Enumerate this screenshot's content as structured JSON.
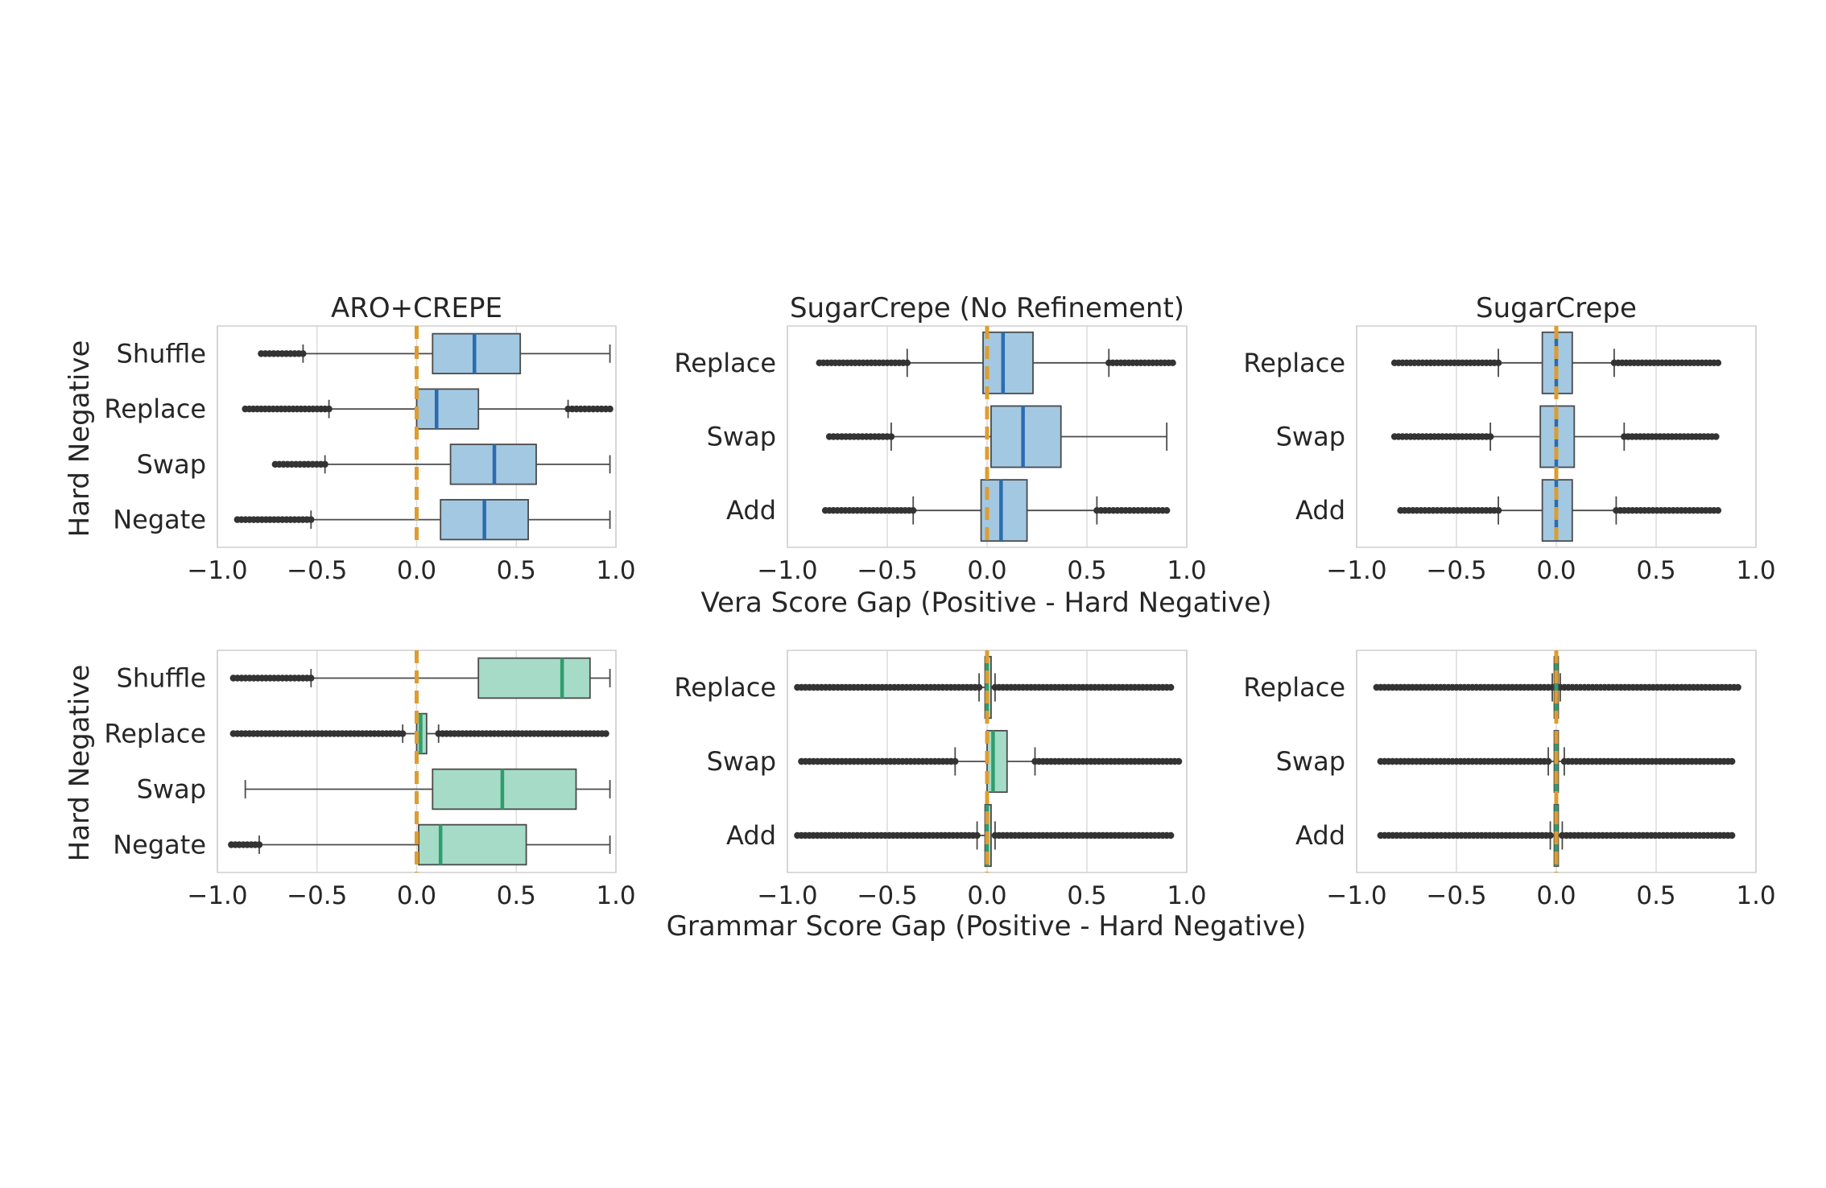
{
  "figure": {
    "row_ylabel": "Hard Negative",
    "xlabels": [
      "Vera Score Gap (Positive - Hard Negative)",
      "Grammar Score Gap (Positive - Hard Negative)"
    ],
    "colors": {
      "vera_box": "#a3c8e2",
      "vera_median": "#2b6cb0",
      "grammar_box": "#a6dbc8",
      "grammar_median": "#2e9e6c",
      "reference_line": "#dd9d2f",
      "grid": "#dcdcdc",
      "frame": "#cfcfcf"
    }
  },
  "chart_data": [
    {
      "type": "box",
      "title": "ARO+CREPE",
      "metric": "Vera Score Gap",
      "xlim": [
        -1.0,
        1.0
      ],
      "xticks": [
        "−1.0",
        "−0.5",
        "0.0",
        "0.5",
        "1.0"
      ],
      "ylabel": "Hard Negative",
      "reference_x": 0.0,
      "categories": [
        "Shuffle",
        "Replace",
        "Swap",
        "Negate"
      ],
      "boxes": [
        {
          "whislo": -0.57,
          "q1": 0.08,
          "med": 0.29,
          "q3": 0.52,
          "whishi": 0.97,
          "outliers_range": [
            -0.78,
            -0.57
          ]
        },
        {
          "whislo": -0.44,
          "q1": 0.0,
          "med": 0.1,
          "q3": 0.31,
          "whishi": 0.76,
          "outliers_range": [
            -0.86,
            -0.44
          ],
          "outliers_range_high": [
            0.76,
            0.97
          ]
        },
        {
          "whislo": -0.46,
          "q1": 0.17,
          "med": 0.39,
          "q3": 0.6,
          "whishi": 0.97,
          "outliers_range": [
            -0.71,
            -0.46
          ]
        },
        {
          "whislo": -0.53,
          "q1": 0.12,
          "med": 0.34,
          "q3": 0.56,
          "whishi": 0.97,
          "outliers_range": [
            -0.9,
            -0.53
          ]
        }
      ]
    },
    {
      "type": "box",
      "title": "SugarCrepe (No Refinement)",
      "metric": "Vera Score Gap",
      "xlim": [
        -1.0,
        1.0
      ],
      "xticks": [
        "−1.0",
        "−0.5",
        "0.0",
        "0.5",
        "1.0"
      ],
      "reference_x": 0.0,
      "categories": [
        "Replace",
        "Swap",
        "Add"
      ],
      "boxes": [
        {
          "whislo": -0.4,
          "q1": -0.02,
          "med": 0.08,
          "q3": 0.23,
          "whishi": 0.61,
          "outliers_range": [
            -0.84,
            -0.4
          ],
          "outliers_range_high": [
            0.61,
            0.93
          ]
        },
        {
          "whislo": -0.48,
          "q1": 0.02,
          "med": 0.18,
          "q3": 0.37,
          "whishi": 0.9,
          "outliers_range": [
            -0.79,
            -0.48
          ]
        },
        {
          "whislo": -0.37,
          "q1": -0.03,
          "med": 0.07,
          "q3": 0.2,
          "whishi": 0.55,
          "outliers_range": [
            -0.81,
            -0.37
          ],
          "outliers_range_high": [
            0.55,
            0.9
          ]
        }
      ]
    },
    {
      "type": "box",
      "title": "SugarCrepe",
      "metric": "Vera Score Gap",
      "xlim": [
        -1.0,
        1.0
      ],
      "xticks": [
        "−1.0",
        "−0.5",
        "0.0",
        "0.5",
        "1.0"
      ],
      "reference_x": 0.0,
      "categories": [
        "Replace",
        "Swap",
        "Add"
      ],
      "boxes": [
        {
          "whislo": -0.29,
          "q1": -0.07,
          "med": 0.0,
          "q3": 0.08,
          "whishi": 0.29,
          "outliers_range": [
            -0.81,
            -0.29
          ],
          "outliers_range_high": [
            0.29,
            0.81
          ]
        },
        {
          "whislo": -0.33,
          "q1": -0.08,
          "med": 0.0,
          "q3": 0.09,
          "whishi": 0.34,
          "outliers_range": [
            -0.81,
            -0.33
          ],
          "outliers_range_high": [
            0.34,
            0.8
          ]
        },
        {
          "whislo": -0.29,
          "q1": -0.07,
          "med": 0.0,
          "q3": 0.08,
          "whishi": 0.3,
          "outliers_range": [
            -0.78,
            -0.29
          ],
          "outliers_range_high": [
            0.3,
            0.81
          ]
        }
      ]
    },
    {
      "type": "box",
      "title": "",
      "metric": "Grammar Score Gap",
      "xlim": [
        -1.0,
        1.0
      ],
      "xticks": [
        "−1.0",
        "−0.5",
        "0.0",
        "0.5",
        "1.0"
      ],
      "ylabel": "Hard Negative",
      "reference_x": 0.0,
      "categories": [
        "Shuffle",
        "Replace",
        "Swap",
        "Negate"
      ],
      "boxes": [
        {
          "whislo": -0.53,
          "q1": 0.31,
          "med": 0.73,
          "q3": 0.87,
          "whishi": 0.97,
          "outliers_range": [
            -0.92,
            -0.53
          ]
        },
        {
          "whislo": -0.07,
          "q1": 0.0,
          "med": 0.02,
          "q3": 0.05,
          "whishi": 0.11,
          "outliers_range": [
            -0.92,
            -0.07
          ],
          "outliers_range_high": [
            0.11,
            0.95
          ]
        },
        {
          "whislo": -0.86,
          "q1": 0.08,
          "med": 0.43,
          "q3": 0.8,
          "whishi": 0.97
        },
        {
          "whislo": -0.79,
          "q1": 0.01,
          "med": 0.12,
          "q3": 0.55,
          "whishi": 0.97,
          "outliers_range": [
            -0.93,
            -0.79
          ]
        }
      ]
    },
    {
      "type": "box",
      "title": "",
      "metric": "Grammar Score Gap",
      "xlim": [
        -1.0,
        1.0
      ],
      "xticks": [
        "−1.0",
        "−0.5",
        "0.0",
        "0.5",
        "1.0"
      ],
      "reference_x": 0.0,
      "categories": [
        "Replace",
        "Swap",
        "Add"
      ],
      "boxes": [
        {
          "whislo": -0.04,
          "q1": -0.01,
          "med": 0.0,
          "q3": 0.02,
          "whishi": 0.04,
          "outliers_range": [
            -0.95,
            -0.04
          ],
          "outliers_range_high": [
            0.04,
            0.92
          ]
        },
        {
          "whislo": -0.16,
          "q1": 0.0,
          "med": 0.03,
          "q3": 0.1,
          "whishi": 0.24,
          "outliers_range": [
            -0.93,
            -0.16
          ],
          "outliers_range_high": [
            0.24,
            0.96
          ]
        },
        {
          "whislo": -0.05,
          "q1": -0.01,
          "med": 0.0,
          "q3": 0.02,
          "whishi": 0.04,
          "outliers_range": [
            -0.95,
            -0.05
          ],
          "outliers_range_high": [
            0.04,
            0.92
          ]
        }
      ]
    },
    {
      "type": "box",
      "title": "",
      "metric": "Grammar Score Gap",
      "xlim": [
        -1.0,
        1.0
      ],
      "xticks": [
        "−1.0",
        "−0.5",
        "0.0",
        "0.5",
        "1.0"
      ],
      "reference_x": 0.0,
      "categories": [
        "Replace",
        "Swap",
        "Add"
      ],
      "boxes": [
        {
          "whislo": -0.02,
          "q1": -0.01,
          "med": 0.0,
          "q3": 0.01,
          "whishi": 0.02,
          "outliers_range": [
            -0.9,
            -0.02
          ],
          "outliers_range_high": [
            0.02,
            0.91
          ]
        },
        {
          "whislo": -0.04,
          "q1": -0.01,
          "med": 0.0,
          "q3": 0.01,
          "whishi": 0.04,
          "outliers_range": [
            -0.88,
            -0.04
          ],
          "outliers_range_high": [
            0.04,
            0.88
          ]
        },
        {
          "whislo": -0.03,
          "q1": -0.01,
          "med": 0.0,
          "q3": 0.01,
          "whishi": 0.03,
          "outliers_range": [
            -0.88,
            -0.03
          ],
          "outliers_range_high": [
            0.03,
            0.88
          ]
        }
      ]
    }
  ]
}
